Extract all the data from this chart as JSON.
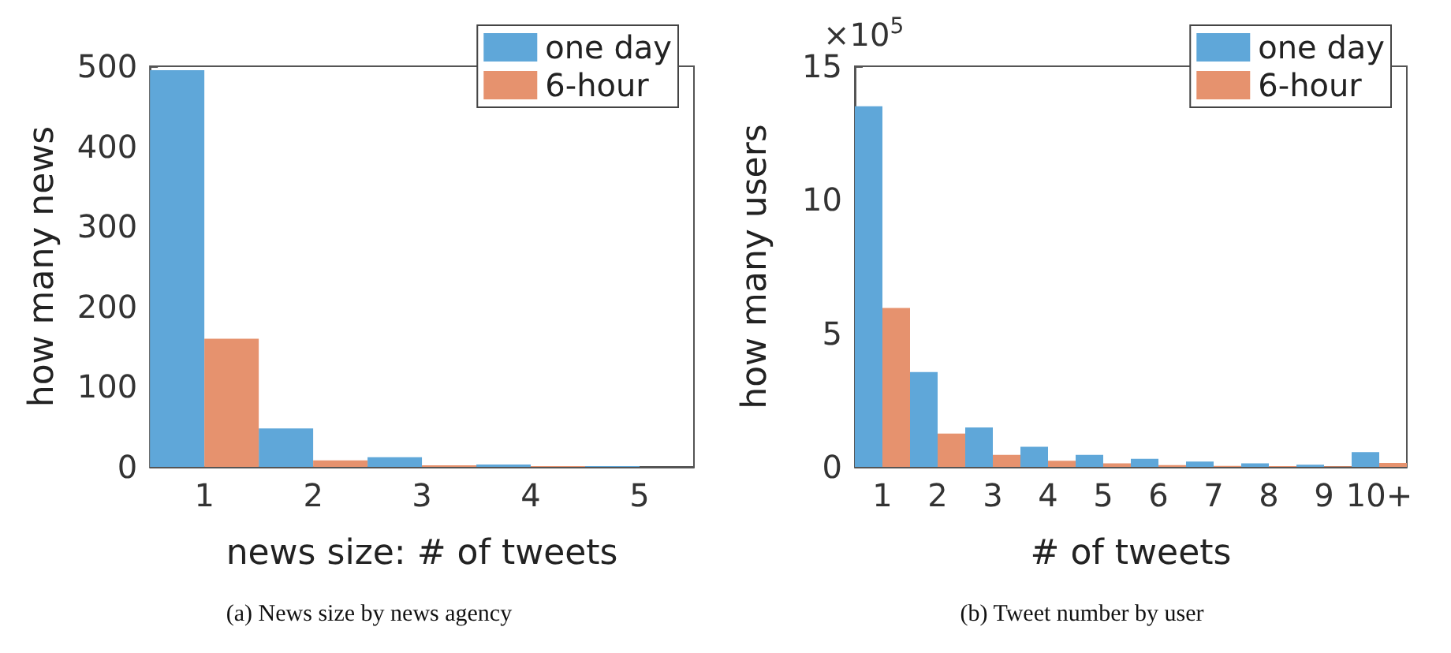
{
  "chart_data": [
    {
      "type": "bar",
      "title": "(a) News size by news agency",
      "xlabel": "news size: # of tweets",
      "ylabel": "how many news",
      "categories": [
        "1",
        "2",
        "3",
        "4",
        "5"
      ],
      "series": [
        {
          "name": "one day",
          "color": "#5fa7d9",
          "values": [
            495,
            48,
            12,
            3,
            1
          ]
        },
        {
          "name": "6-hour",
          "color": "#e6926e",
          "values": [
            160,
            8,
            2,
            1,
            0
          ]
        }
      ],
      "ylim": [
        0,
        500
      ],
      "yticks": [
        0,
        100,
        200,
        300,
        400,
        500
      ],
      "legend": "top right",
      "grid": false
    },
    {
      "type": "bar",
      "title": "(b) Tweet number by user",
      "xlabel": "# of tweets",
      "ylabel": "how many users",
      "annotations": [
        "×10$^{5}$"
      ],
      "categories": [
        "1",
        "2",
        "3",
        "4",
        "5",
        "6",
        "7",
        "8",
        "9",
        "10+"
      ],
      "series": [
        {
          "name": "one day",
          "color": "#5fa7d9",
          "values": [
            13.5,
            3.55,
            1.48,
            0.75,
            0.45,
            0.3,
            0.2,
            0.13,
            0.08,
            0.55
          ]
        },
        {
          "name": "6-hour",
          "color": "#e6926e",
          "values": [
            5.95,
            1.25,
            0.45,
            0.23,
            0.13,
            0.07,
            0.04,
            0.03,
            0.02,
            0.15
          ]
        }
      ],
      "ylim": [
        0,
        15
      ],
      "yticks": [
        0,
        5,
        10,
        15
      ],
      "legend": "top right",
      "grid": false
    }
  ]
}
